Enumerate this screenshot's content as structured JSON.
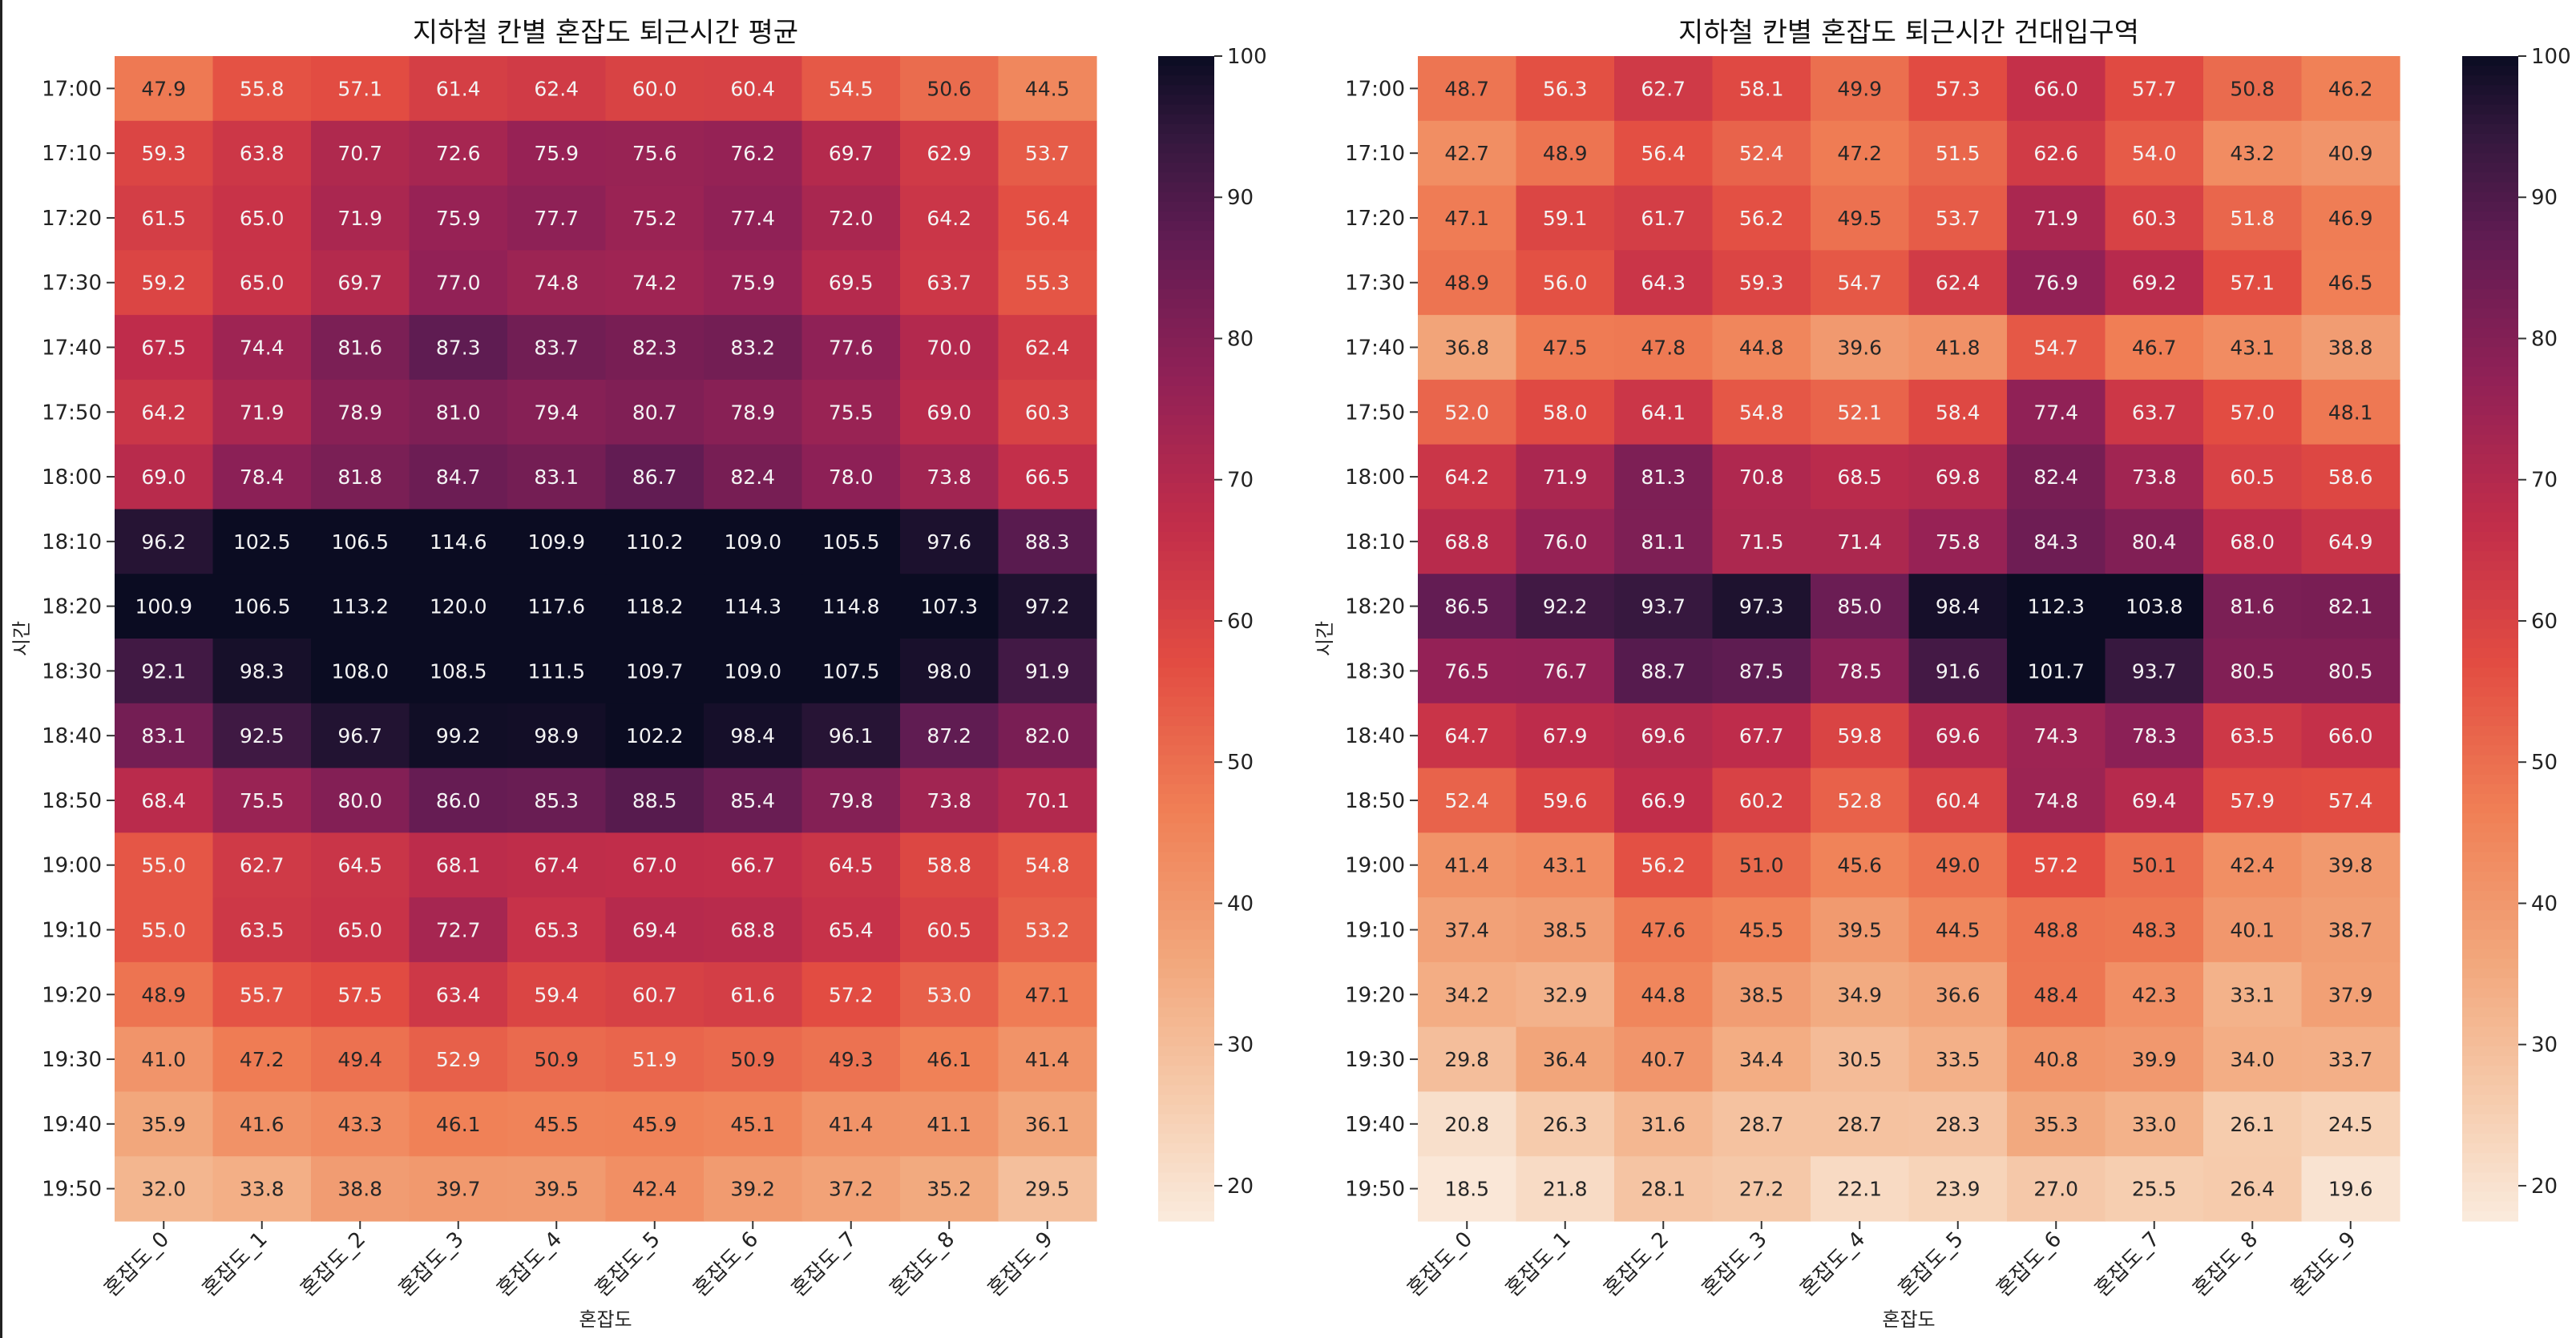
{
  "figure": {
    "shared": {
      "row_labels": [
        "17:00",
        "17:10",
        "17:20",
        "17:30",
        "17:40",
        "17:50",
        "18:00",
        "18:10",
        "18:20",
        "18:30",
        "18:40",
        "18:50",
        "19:00",
        "19:10",
        "19:20",
        "19:30",
        "19:40",
        "19:50"
      ],
      "col_labels": [
        "혼잡도_0",
        "혼잡도_1",
        "혼잡도_2",
        "혼잡도_3",
        "혼잡도_4",
        "혼잡도_5",
        "혼잡도_6",
        "혼잡도_7",
        "혼잡도_8",
        "혼잡도_9"
      ]
    }
  },
  "chart_data": [
    {
      "type": "heatmap",
      "title": "지하철 칸별 혼잡도 퇴근시간 평균",
      "xlabel": "혼잡도",
      "ylabel": "시간",
      "colormap": "rocket_r",
      "colorbar": {
        "vmin": 17.5,
        "vmax": 100,
        "ticks": [
          20,
          30,
          40,
          50,
          60,
          70,
          80,
          90,
          100
        ]
      },
      "values": [
        [
          47.9,
          55.8,
          57.1,
          61.4,
          62.4,
          60.0,
          60.4,
          54.5,
          50.6,
          44.5
        ],
        [
          59.3,
          63.8,
          70.7,
          72.6,
          75.9,
          75.6,
          76.2,
          69.7,
          62.9,
          53.7
        ],
        [
          61.5,
          65.0,
          71.9,
          75.9,
          77.7,
          75.2,
          77.4,
          72.0,
          64.2,
          56.4
        ],
        [
          59.2,
          65.0,
          69.7,
          77.0,
          74.8,
          74.2,
          75.9,
          69.5,
          63.7,
          55.3
        ],
        [
          67.5,
          74.4,
          81.6,
          87.3,
          83.7,
          82.3,
          83.2,
          77.6,
          70.0,
          62.4
        ],
        [
          64.2,
          71.9,
          78.9,
          81.0,
          79.4,
          80.7,
          78.9,
          75.5,
          69.0,
          60.3
        ],
        [
          69.0,
          78.4,
          81.8,
          84.7,
          83.1,
          86.7,
          82.4,
          78.0,
          73.8,
          66.5
        ],
        [
          96.2,
          102.5,
          106.5,
          114.6,
          109.9,
          110.2,
          109.0,
          105.5,
          97.6,
          88.3
        ],
        [
          100.9,
          106.5,
          113.2,
          120.0,
          117.6,
          118.2,
          114.3,
          114.8,
          107.3,
          97.2
        ],
        [
          92.1,
          98.3,
          108.0,
          108.5,
          111.5,
          109.7,
          109.0,
          107.5,
          98.0,
          91.9
        ],
        [
          83.1,
          92.5,
          96.7,
          99.2,
          98.9,
          102.2,
          98.4,
          96.1,
          87.2,
          82.0
        ],
        [
          68.4,
          75.5,
          80.0,
          86.0,
          85.3,
          88.5,
          85.4,
          79.8,
          73.8,
          70.1
        ],
        [
          55.0,
          62.7,
          64.5,
          68.1,
          67.4,
          67.0,
          66.7,
          64.5,
          58.8,
          54.8
        ],
        [
          55.0,
          63.5,
          65.0,
          72.7,
          65.3,
          69.4,
          68.8,
          65.4,
          60.5,
          53.2
        ],
        [
          48.9,
          55.7,
          57.5,
          63.4,
          59.4,
          60.7,
          61.6,
          57.2,
          53.0,
          47.1
        ],
        [
          41.0,
          47.2,
          49.4,
          52.9,
          50.9,
          51.9,
          50.9,
          49.3,
          46.1,
          41.4
        ],
        [
          35.9,
          41.6,
          43.3,
          46.1,
          45.5,
          45.9,
          45.1,
          41.4,
          41.1,
          36.1
        ],
        [
          32.0,
          33.8,
          38.8,
          39.7,
          39.5,
          42.4,
          39.2,
          37.2,
          35.2,
          29.5
        ]
      ]
    },
    {
      "type": "heatmap",
      "title": "지하철 칸별 혼잡도 퇴근시간 건대입구역",
      "xlabel": "혼잡도",
      "ylabel": "시간",
      "colormap": "rocket_r",
      "colorbar": {
        "vmin": 17.5,
        "vmax": 100,
        "ticks": [
          20,
          30,
          40,
          50,
          60,
          70,
          80,
          90,
          100
        ]
      },
      "values": [
        [
          48.7,
          56.3,
          62.7,
          58.1,
          49.9,
          57.3,
          66.0,
          57.7,
          50.8,
          46.2
        ],
        [
          42.7,
          48.9,
          56.4,
          52.4,
          47.2,
          51.5,
          62.6,
          54.0,
          43.2,
          40.9
        ],
        [
          47.1,
          59.1,
          61.7,
          56.2,
          49.5,
          53.7,
          71.9,
          60.3,
          51.8,
          46.9
        ],
        [
          48.9,
          56.0,
          64.3,
          59.3,
          54.7,
          62.4,
          76.9,
          69.2,
          57.1,
          46.5
        ],
        [
          36.8,
          47.5,
          47.8,
          44.8,
          39.6,
          41.8,
          54.7,
          46.7,
          43.1,
          38.8
        ],
        [
          52.0,
          58.0,
          64.1,
          54.8,
          52.1,
          58.4,
          77.4,
          63.7,
          57.0,
          48.1
        ],
        [
          64.2,
          71.9,
          81.3,
          70.8,
          68.5,
          69.8,
          82.4,
          73.8,
          60.5,
          58.6
        ],
        [
          68.8,
          76.0,
          81.1,
          71.5,
          71.4,
          75.8,
          84.3,
          80.4,
          68.0,
          64.9
        ],
        [
          86.5,
          92.2,
          93.7,
          97.3,
          85.0,
          98.4,
          112.3,
          103.8,
          81.6,
          82.1
        ],
        [
          76.5,
          76.7,
          88.7,
          87.5,
          78.5,
          91.6,
          101.7,
          93.7,
          80.5,
          80.5
        ],
        [
          64.7,
          67.9,
          69.6,
          67.7,
          59.8,
          69.6,
          74.3,
          78.3,
          63.5,
          66.0
        ],
        [
          52.4,
          59.6,
          66.9,
          60.2,
          52.8,
          60.4,
          74.8,
          69.4,
          57.9,
          57.4
        ],
        [
          41.4,
          43.1,
          56.2,
          51.0,
          45.6,
          49.0,
          57.2,
          50.1,
          42.4,
          39.8
        ],
        [
          37.4,
          38.5,
          47.6,
          45.5,
          39.5,
          44.5,
          48.8,
          48.3,
          40.1,
          38.7
        ],
        [
          34.2,
          32.9,
          44.8,
          38.5,
          34.9,
          36.6,
          48.4,
          42.3,
          33.1,
          37.9
        ],
        [
          29.8,
          36.4,
          40.7,
          34.4,
          30.5,
          33.5,
          40.8,
          39.9,
          34.0,
          33.7
        ],
        [
          20.8,
          26.3,
          31.6,
          28.7,
          28.7,
          28.3,
          35.3,
          33.0,
          26.1,
          24.5
        ],
        [
          18.5,
          21.8,
          28.1,
          27.2,
          22.1,
          23.9,
          27.0,
          25.5,
          26.4,
          19.6
        ]
      ]
    }
  ]
}
